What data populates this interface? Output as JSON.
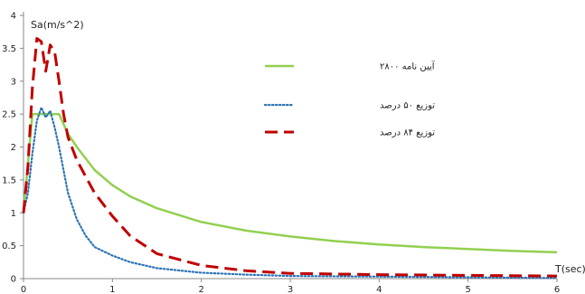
{
  "chart_data": {
    "type": "line",
    "title": "",
    "xlabel": "T(sec)",
    "ylabel": "Sa(m/s^2)",
    "xlim": [
      0,
      6
    ],
    "ylim": [
      0,
      4
    ],
    "xticks": [
      0,
      1,
      2,
      3,
      4,
      5,
      6
    ],
    "yticks": [
      0,
      0.5,
      1,
      1.5,
      2,
      2.5,
      3,
      3.5,
      4
    ],
    "grid": false,
    "legend_position": "center-right",
    "series": [
      {
        "name": "آیین نامه ۲۸۰۰",
        "color": "#92d050",
        "style": "solid",
        "x": [
          0,
          0.1,
          0.4,
          0.5,
          0.6,
          0.8,
          1.0,
          1.2,
          1.5,
          2.0,
          2.5,
          3.0,
          3.5,
          4.0,
          4.5,
          5.0,
          5.5,
          6.0
        ],
        "y": [
          1.0,
          2.5,
          2.5,
          2.2,
          2.0,
          1.65,
          1.42,
          1.25,
          1.07,
          0.86,
          0.73,
          0.64,
          0.57,
          0.52,
          0.48,
          0.45,
          0.42,
          0.4
        ]
      },
      {
        "name": "توزیع ۵۰ درصد",
        "color": "#2e75b6",
        "style": "dotted",
        "x": [
          0,
          0.05,
          0.1,
          0.15,
          0.2,
          0.25,
          0.3,
          0.35,
          0.4,
          0.5,
          0.6,
          0.7,
          0.8,
          1.0,
          1.2,
          1.5,
          2.0,
          2.5,
          3.0,
          4.0,
          5.0,
          6.0
        ],
        "y": [
          1.0,
          1.3,
          1.9,
          2.4,
          2.6,
          2.45,
          2.55,
          2.3,
          2.0,
          1.3,
          0.9,
          0.65,
          0.48,
          0.35,
          0.25,
          0.16,
          0.09,
          0.06,
          0.04,
          0.03,
          0.02,
          0.01
        ]
      },
      {
        "name": "توزیع ۸۴ درصد",
        "color": "#c00000",
        "style": "dashed",
        "x": [
          0,
          0.05,
          0.1,
          0.15,
          0.2,
          0.25,
          0.3,
          0.35,
          0.4,
          0.45,
          0.5,
          0.6,
          0.7,
          0.8,
          1.0,
          1.2,
          1.5,
          2.0,
          2.5,
          3.0,
          4.0,
          5.0,
          6.0
        ],
        "y": [
          1.0,
          1.7,
          2.9,
          3.65,
          3.6,
          3.15,
          3.55,
          3.45,
          3.0,
          2.5,
          2.15,
          1.8,
          1.55,
          1.3,
          0.95,
          0.65,
          0.38,
          0.2,
          0.12,
          0.08,
          0.06,
          0.05,
          0.04
        ]
      }
    ]
  }
}
